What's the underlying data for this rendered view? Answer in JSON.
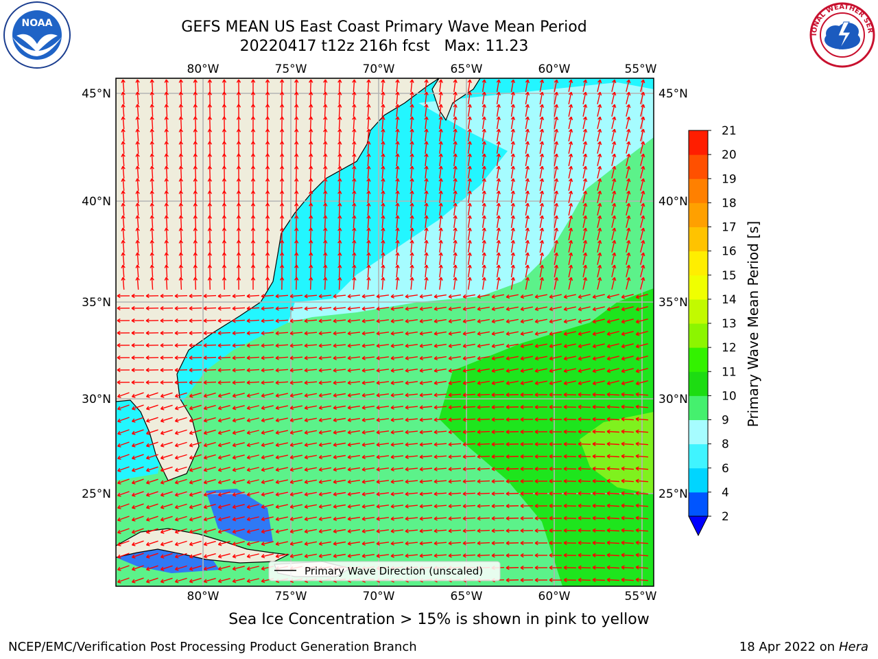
{
  "title": {
    "line1": "GEFS MEAN US East Coast Primary Wave Mean Period",
    "line2": "20220417 t12z 216h fcst   Max: 11.23"
  },
  "logos": {
    "left": "NOAA",
    "left_ring": "NATIONAL OCEANIC AND ATMOSPHERIC ADMINISTRATION · U.S. DEPARTMENT OF COMMERCE",
    "right_ring": "NATIONAL WEATHER SERVICE"
  },
  "map": {
    "lon_labels": [
      "80°W",
      "75°W",
      "70°W",
      "65°W",
      "60°W",
      "55°W"
    ],
    "lat_labels": [
      "45°N",
      "40°N",
      "35°N",
      "30°N",
      "25°N"
    ],
    "legend_label": "Primary Wave Direction (unscaled)",
    "arrow_color": "#ff0000",
    "land_color": "#efeddc"
  },
  "colorbar": {
    "label": "Primary Wave Mean Period [s]",
    "ticks": [
      "2",
      "4",
      "6",
      "8",
      "9",
      "10",
      "11",
      "12",
      "13",
      "14",
      "15",
      "16",
      "17",
      "18",
      "19",
      "20",
      "21"
    ],
    "colors": [
      "#0055ff",
      "#00d5ff",
      "#40f4ff",
      "#a6fcff",
      "#45f06e",
      "#1ddc12",
      "#33f200",
      "#8cf500",
      "#c2fa00",
      "#f0ff00",
      "#ffee00",
      "#ffc300",
      "#ffa000",
      "#ff8000",
      "#ff5000",
      "#ff1e00"
    ]
  },
  "note": "Sea Ice Concentration > 15% is shown in pink to yellow",
  "footer": {
    "left": "NCEP/EMC/Verification Post Processing Product Generation Branch",
    "date": "18 Apr 2022 on ",
    "host": "Hera"
  }
}
